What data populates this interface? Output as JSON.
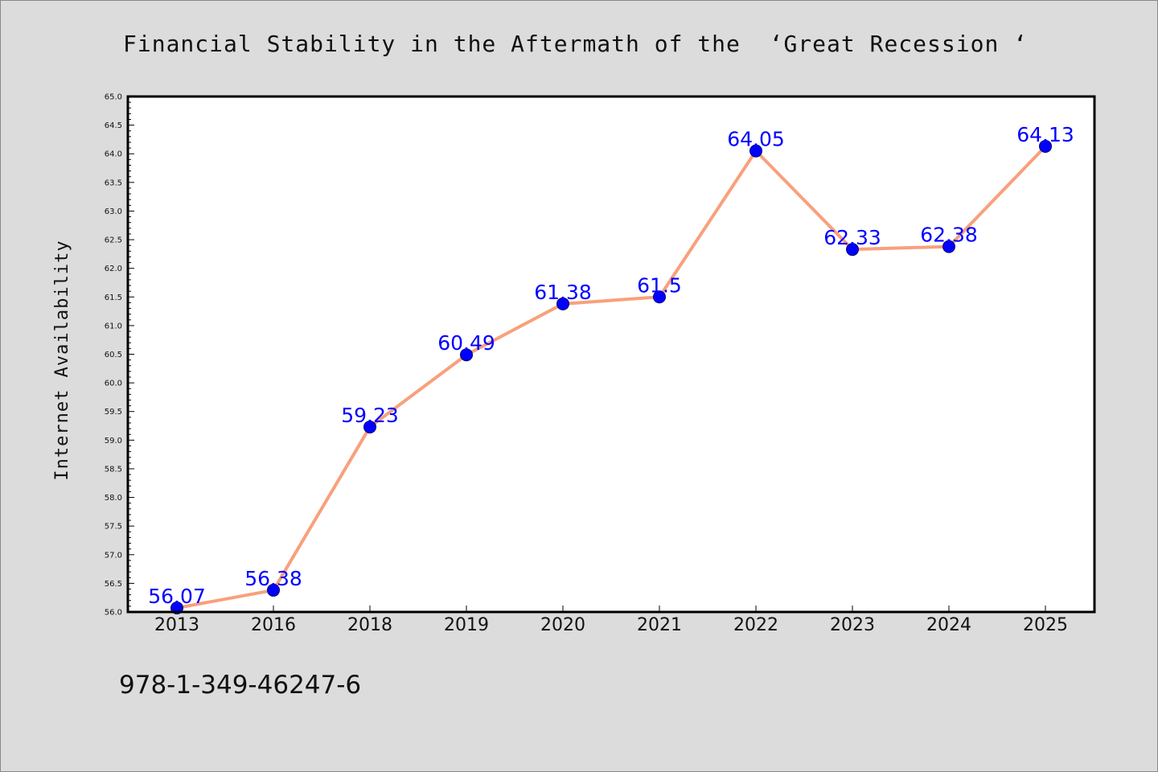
{
  "title": "Financial Stability in the Aftermath of the  ‘Great Recession ‘",
  "footer_text": "978-1-349-46247-6",
  "colors": {
    "background": "#dcdcdc",
    "plot_background": "#ffffff",
    "line": "#f8a07c",
    "marker": "#0000ff",
    "data_label": "#0000ff"
  },
  "chart_data": {
    "type": "line",
    "title": "Financial Stability in the Aftermath of the  ‘Great Recession ‘",
    "xlabel": "",
    "ylabel": "Internet Availability",
    "categories": [
      "2013",
      "2016",
      "2018",
      "2019",
      "2020",
      "2021",
      "2022",
      "2023",
      "2024",
      "2025"
    ],
    "series": [
      {
        "values": [
          56.07,
          56.38,
          59.23,
          60.49,
          61.38,
          61.5,
          64.05,
          62.33,
          62.38,
          64.13
        ],
        "data_labels": [
          "56.07",
          "56.38",
          "59.23",
          "60.49",
          "61.38",
          "61.5",
          "64.05",
          "62.33",
          "62.38",
          "64.13"
        ]
      }
    ],
    "ylim": [
      56.0,
      65.0
    ],
    "yticks": [
      "56.0",
      "56.5",
      "57.0",
      "57.5",
      "58.0",
      "58.5",
      "59.0",
      "59.5",
      "60.0",
      "60.5",
      "61.0",
      "61.5",
      "62.0",
      "62.5",
      "63.0",
      "63.5",
      "64.0",
      "64.5",
      "65.0"
    ],
    "grid": false,
    "legend": "none"
  }
}
